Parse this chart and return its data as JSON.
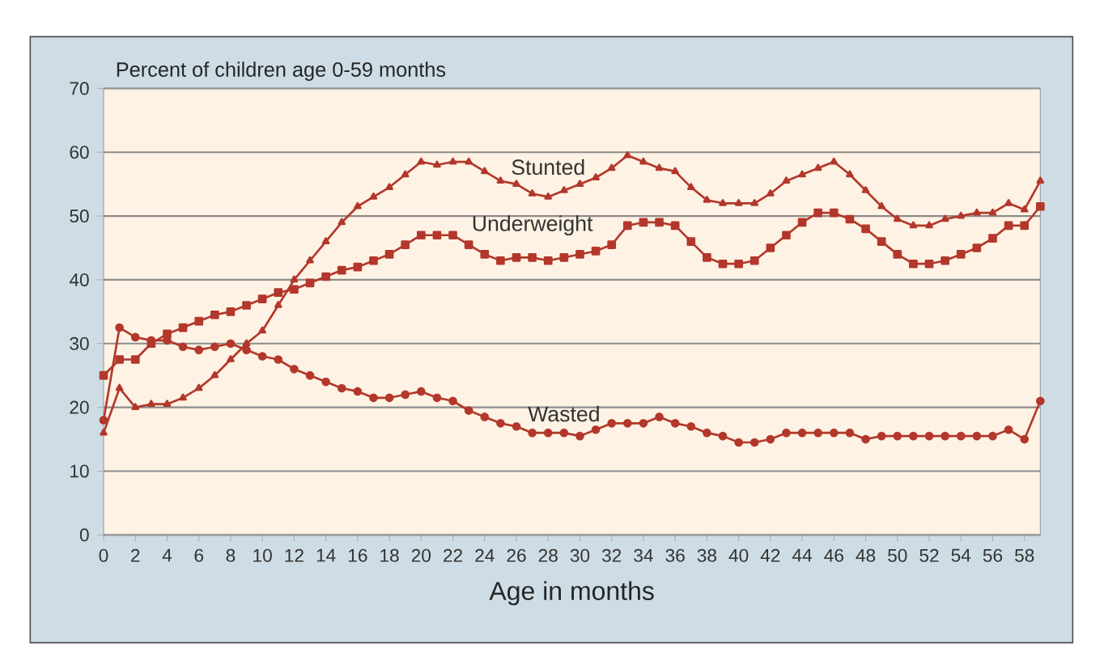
{
  "chart_data": {
    "type": "line",
    "ylabel": "Percent of children age 0-59 months",
    "xlabel": "Age in months",
    "x": [
      0,
      1,
      2,
      3,
      4,
      5,
      6,
      7,
      8,
      9,
      10,
      11,
      12,
      13,
      14,
      15,
      16,
      17,
      18,
      19,
      20,
      21,
      22,
      23,
      24,
      25,
      26,
      27,
      28,
      29,
      30,
      31,
      32,
      33,
      34,
      35,
      36,
      37,
      38,
      39,
      40,
      41,
      42,
      43,
      44,
      45,
      46,
      47,
      48,
      49,
      50,
      51,
      52,
      53,
      54,
      55,
      56,
      57,
      58,
      59
    ],
    "series": [
      {
        "name": "Stunted",
        "color": "#b3372b",
        "marker": "triangle",
        "values": [
          16,
          23,
          20,
          20.5,
          20.5,
          21.5,
          23,
          25,
          27.5,
          30,
          32,
          36,
          40,
          43,
          46,
          49,
          51.5,
          53,
          54.5,
          56.5,
          58.5,
          58,
          58.5,
          58.5,
          57,
          55.5,
          55,
          53.5,
          53,
          54,
          55,
          56,
          57.5,
          59.5,
          58.5,
          57.5,
          57,
          54.5,
          52.5,
          52,
          52,
          52,
          53.5,
          55.5,
          56.5,
          57.5,
          58.5,
          56.5,
          54,
          51.5,
          49.5,
          48.5,
          48.5,
          49.5,
          50,
          50.5,
          50.5,
          52,
          51,
          55.5
        ]
      },
      {
        "name": "Underweight",
        "color": "#b3372b",
        "marker": "square",
        "values": [
          25,
          27.5,
          27.5,
          30,
          31.5,
          32.5,
          33.5,
          34.5,
          35,
          36,
          37,
          38,
          38.5,
          39.5,
          40.5,
          41.5,
          42,
          43,
          44,
          45.5,
          47,
          47,
          47,
          45.5,
          44,
          43,
          43.5,
          43.5,
          43,
          43.5,
          44,
          44.5,
          45.5,
          48.5,
          49,
          49,
          48.5,
          46,
          43.5,
          42.5,
          42.5,
          43,
          45,
          47,
          49,
          50.5,
          50.5,
          49.5,
          48,
          46,
          44,
          42.5,
          42.5,
          43,
          44,
          45,
          46.5,
          48.5,
          48.5,
          51.5
        ]
      },
      {
        "name": "Wasted",
        "color": "#b3372b",
        "marker": "circle",
        "values": [
          18,
          32.5,
          31,
          30.5,
          30.5,
          29.5,
          29,
          29.5,
          30,
          29,
          28,
          27.5,
          26,
          25,
          24,
          23,
          22.5,
          21.5,
          21.5,
          22,
          22.5,
          21.5,
          21,
          19.5,
          18.5,
          17.5,
          17,
          16,
          16,
          16,
          15.5,
          16.5,
          17.5,
          17.5,
          17.5,
          18.5,
          17.5,
          17,
          16,
          15.5,
          14.5,
          14.5,
          15,
          16,
          16,
          16,
          16,
          16,
          15,
          15.5,
          15.5,
          15.5,
          15.5,
          15.5,
          15.5,
          15.5,
          15.5,
          16.5,
          15,
          21
        ]
      }
    ],
    "xlim": [
      0,
      59
    ],
    "xticks": [
      0,
      2,
      4,
      6,
      8,
      10,
      12,
      14,
      16,
      18,
      20,
      22,
      24,
      26,
      28,
      30,
      32,
      34,
      36,
      38,
      40,
      42,
      44,
      46,
      48,
      50,
      52,
      54,
      56,
      58
    ],
    "ylim": [
      0,
      70
    ],
    "yticks": [
      0,
      10,
      20,
      30,
      40,
      50,
      60,
      70
    ],
    "grid": "y",
    "legend": false,
    "line_style": "solid"
  }
}
